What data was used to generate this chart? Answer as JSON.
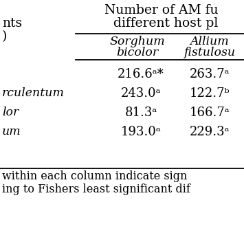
{
  "title_line1": "Number of AM fu",
  "title_line2": "different host pl",
  "left_top_label1": "nts",
  "left_top_label2": ")",
  "col1_header1": "Sorghum",
  "col1_header2": "bicolor",
  "col2_header1": "Allium",
  "col2_header2": "fistulosu",
  "row_left_labels": [
    "",
    "rculentum",
    "lor",
    "um"
  ],
  "col1_values": [
    "216.6ᵃ*",
    "243.0ᵃ",
    "81.3ᵃ",
    "193.0ᵃ"
  ],
  "col2_values": [
    "263.7ᵃ",
    "122.7ᵇ",
    "166.7ᵃ",
    "229.3ᵃ"
  ],
  "footnote1": "within each column indicate sign",
  "footnote2": "ing to Fishers least significant dif",
  "bg_color": "#ffffff",
  "text_color": "#000000",
  "line_color": "#000000",
  "figsize": [
    3.55,
    3.55
  ],
  "dpi": 100
}
